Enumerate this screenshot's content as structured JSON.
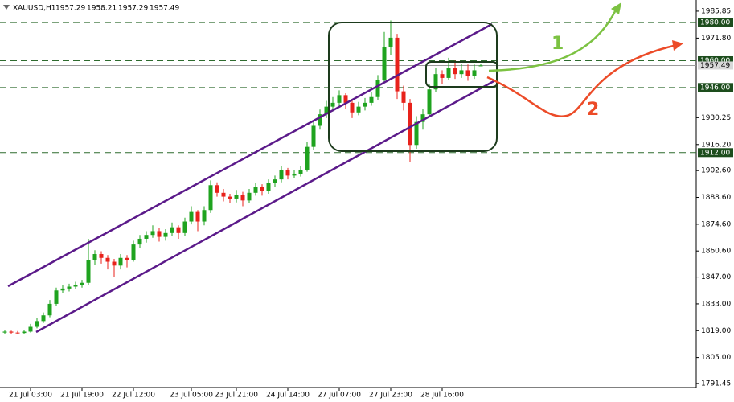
{
  "chart_data": {
    "type": "candlestick",
    "title": "XAUUSD,H1",
    "candles": [
      [
        1818.0,
        1819.2,
        1817.3,
        1818.5
      ],
      [
        1818.5,
        1819.0,
        1817.2,
        1818.0
      ],
      [
        1818.0,
        1818.8,
        1817.0,
        1817.8
      ],
      [
        1817.8,
        1819.5,
        1817.4,
        1818.5
      ],
      [
        1818.5,
        1822.5,
        1818.0,
        1821.0
      ],
      [
        1821.0,
        1825.5,
        1820.2,
        1824.0
      ],
      [
        1824.0,
        1828.5,
        1823.0,
        1827.0
      ],
      [
        1827.0,
        1835.0,
        1826.0,
        1833.0
      ],
      [
        1833.0,
        1841.5,
        1832.0,
        1840.0
      ],
      [
        1840.0,
        1843.0,
        1838.5,
        1841.0
      ],
      [
        1841.0,
        1843.5,
        1839.5,
        1842.0
      ],
      [
        1842.0,
        1844.5,
        1840.8,
        1843.0
      ],
      [
        1843.0,
        1845.5,
        1841.5,
        1844.0
      ],
      [
        1844.0,
        1867.0,
        1843.0,
        1856.0
      ],
      [
        1856.0,
        1861.0,
        1853.5,
        1859.0
      ],
      [
        1859.0,
        1860.5,
        1854.0,
        1857.0
      ],
      [
        1857.0,
        1858.5,
        1851.0,
        1855.0
      ],
      [
        1855.0,
        1856.5,
        1847.0,
        1853.0
      ],
      [
        1853.0,
        1859.0,
        1851.0,
        1857.0
      ],
      [
        1857.0,
        1858.5,
        1852.0,
        1856.0
      ],
      [
        1856.0,
        1866.0,
        1855.0,
        1864.0
      ],
      [
        1864.0,
        1869.0,
        1862.0,
        1867.0
      ],
      [
        1867.0,
        1871.0,
        1865.0,
        1869.0
      ],
      [
        1869.0,
        1874.0,
        1867.5,
        1871.0
      ],
      [
        1871.0,
        1872.5,
        1865.5,
        1868.0
      ],
      [
        1868.0,
        1872.0,
        1866.0,
        1870.0
      ],
      [
        1870.0,
        1875.5,
        1868.5,
        1873.0
      ],
      [
        1873.0,
        1874.0,
        1867.0,
        1870.0
      ],
      [
        1870.0,
        1878.0,
        1868.5,
        1876.0
      ],
      [
        1876.0,
        1884.0,
        1874.5,
        1881.0
      ],
      [
        1881.0,
        1882.0,
        1871.0,
        1876.0
      ],
      [
        1876.0,
        1884.0,
        1874.0,
        1882.0
      ],
      [
        1882.0,
        1897.5,
        1880.5,
        1895.0
      ],
      [
        1895.0,
        1896.5,
        1889.0,
        1891.0
      ],
      [
        1891.0,
        1893.0,
        1886.5,
        1889.0
      ],
      [
        1889.0,
        1890.5,
        1885.5,
        1888.0
      ],
      [
        1888.0,
        1892.5,
        1886.0,
        1890.0
      ],
      [
        1890.0,
        1891.5,
        1884.0,
        1887.0
      ],
      [
        1887.0,
        1893.0,
        1885.5,
        1891.0
      ],
      [
        1891.0,
        1896.0,
        1889.5,
        1894.0
      ],
      [
        1894.0,
        1895.5,
        1889.5,
        1892.0
      ],
      [
        1892.0,
        1898.0,
        1890.5,
        1896.0
      ],
      [
        1896.0,
        1900.0,
        1894.0,
        1898.0
      ],
      [
        1898.0,
        1905.0,
        1896.5,
        1903.0
      ],
      [
        1903.0,
        1904.0,
        1898.0,
        1900.0
      ],
      [
        1900.0,
        1903.0,
        1898.5,
        1901.0
      ],
      [
        1901.0,
        1905.0,
        1899.5,
        1903.0
      ],
      [
        1903.0,
        1917.5,
        1902.0,
        1915.0
      ],
      [
        1915.0,
        1928.0,
        1913.5,
        1926.0
      ],
      [
        1926.0,
        1934.5,
        1924.0,
        1932.0
      ],
      [
        1932.0,
        1939.0,
        1930.0,
        1936.0
      ],
      [
        1936.0,
        1941.0,
        1933.5,
        1938.0
      ],
      [
        1938.0,
        1944.5,
        1936.0,
        1942.0
      ],
      [
        1942.0,
        1943.0,
        1935.0,
        1938.0
      ],
      [
        1938.0,
        1940.0,
        1930.0,
        1933.0
      ],
      [
        1933.0,
        1938.5,
        1931.5,
        1936.0
      ],
      [
        1936.0,
        1940.5,
        1934.0,
        1938.0
      ],
      [
        1938.0,
        1943.5,
        1936.5,
        1941.0
      ],
      [
        1941.0,
        1952.5,
        1939.5,
        1950.0
      ],
      [
        1950.0,
        1975.0,
        1948.5,
        1967.0
      ],
      [
        1967.0,
        1981.0,
        1963.0,
        1972.0
      ],
      [
        1972.0,
        1974.0,
        1940.0,
        1944.0
      ],
      [
        1944.0,
        1947.0,
        1934.0,
        1938.0
      ],
      [
        1938.0,
        1940.0,
        1907.0,
        1916.0
      ],
      [
        1916.0,
        1931.0,
        1914.0,
        1928.0
      ],
      [
        1928.0,
        1935.0,
        1924.0,
        1932.0
      ],
      [
        1932.0,
        1948.0,
        1930.5,
        1945.0
      ],
      [
        1945.0,
        1956.0,
        1943.5,
        1953.0
      ],
      [
        1953.0,
        1955.0,
        1948.0,
        1951.0
      ],
      [
        1951.0,
        1961.5,
        1950.0,
        1956.0
      ],
      [
        1956.0,
        1960.0,
        1950.5,
        1953.0
      ],
      [
        1953.0,
        1958.5,
        1951.0,
        1955.0
      ],
      [
        1955.0,
        1958.0,
        1949.5,
        1952.0
      ],
      [
        1952.0,
        1958.0,
        1950.5,
        1955.0
      ],
      [
        1957.29,
        1958.21,
        1957.29,
        1957.49
      ]
    ],
    "categories": [
      null,
      null,
      null,
      null,
      "21 Jul 03:00",
      null,
      null,
      null,
      null,
      null,
      null,
      null,
      "21 Jul 19:00",
      null,
      null,
      null,
      null,
      null,
      null,
      null,
      "22 Jul 12:00",
      null,
      null,
      null,
      null,
      null,
      null,
      null,
      null,
      "23 Jul 05:00",
      null,
      null,
      null,
      null,
      null,
      null,
      "23 Jul 21:00",
      null,
      null,
      null,
      null,
      null,
      null,
      null,
      "24 Jul 14:00",
      null,
      null,
      null,
      null,
      null,
      null,
      null,
      "27 Jul 07:00",
      null,
      null,
      null,
      null,
      null,
      null,
      null,
      "27 Jul 23:00",
      null,
      null,
      null,
      null,
      null,
      null,
      null,
      "28 Jul 16:00",
      null,
      null,
      null,
      null,
      null,
      null
    ],
    "up_color": "#1fa31f",
    "down_color": "#e8221b",
    "ylim": [
      1789.3,
      1991.7
    ],
    "yticks": [
      1985.85,
      {
        "value": 1971.8,
        "label": "1971.80"
      },
      1930.25,
      {
        "value": 1916.2,
        "label": "1916.20"
      },
      {
        "value": 1902.6,
        "label": "1902.60"
      },
      {
        "value": 1888.6,
        "label": "1888.60"
      },
      {
        "value": 1874.6,
        "label": "1874.60"
      },
      {
        "value": 1860.6,
        "label": "1860.60"
      },
      {
        "value": 1847,
        "label": "1847.00"
      },
      {
        "value": 1833,
        "label": "1833.00"
      },
      {
        "value": 1819,
        "label": "1819.00"
      },
      {
        "value": 1805,
        "label": "1805.00"
      },
      1791.45
    ],
    "levels": [
      {
        "value": 1980,
        "label": "1980.00"
      },
      {
        "value": 1960,
        "label": "1960.00"
      },
      {
        "value": 1946,
        "label": "1946.00"
      },
      {
        "value": 1912,
        "label": "1912.00"
      }
    ],
    "annotations": [
      "1",
      "2"
    ]
  }
}
